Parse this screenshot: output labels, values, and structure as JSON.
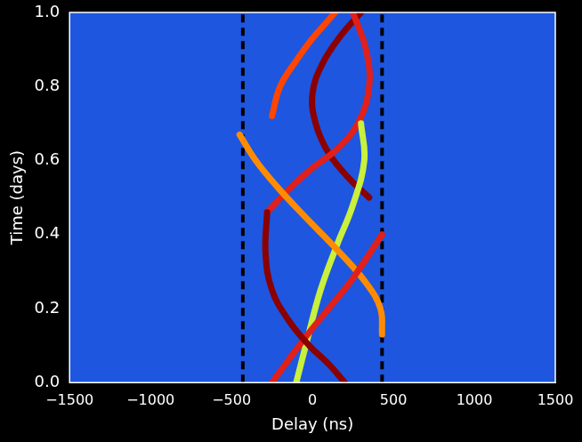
{
  "chart_data": {
    "type": "scatter",
    "x_label": "Delay (ns)",
    "y_label": "Time (days)",
    "xlim": [
      -1500,
      1500
    ],
    "xticks": [
      {
        "value": -1500,
        "label": "−1500"
      },
      {
        "value": -1000,
        "label": "−1000"
      },
      {
        "value": -500,
        "label": "−500"
      },
      0,
      500,
      1000,
      1500
    ],
    "ylim": [
      0,
      1.0
    ],
    "yticks": [
      {
        "value": 0,
        "label": "0.0"
      },
      {
        "value": 0.2,
        "label": "0.2"
      },
      {
        "value": 0.4,
        "label": "0.4"
      },
      {
        "value": 0.6,
        "label": "0.6"
      },
      {
        "value": 0.8,
        "label": "0.8"
      },
      {
        "value": 1.0,
        "label": "1.0"
      }
    ],
    "grid": false,
    "vlines": [
      -430,
      430
    ],
    "vline_style": "dashed",
    "series": [
      {
        "color": "#8b0000",
        "line_style": "solid",
        "x": [
          200,
          100,
          -20,
          -150,
          -250,
          -290,
          -280
        ],
        "y": [
          0,
          0.05,
          0.1,
          0.17,
          0.25,
          0.35,
          0.46
        ]
      },
      {
        "color": "#e0201a",
        "line_style": "solid",
        "x": [
          -250,
          -150,
          -30,
          100,
          230,
          340,
          430
        ],
        "y": [
          0,
          0.06,
          0.13,
          0.2,
          0.27,
          0.34,
          0.4
        ]
      },
      {
        "color": "#ff8c00",
        "line_style": "solid",
        "x": [
          430,
          420,
          330,
          150,
          -50,
          -220,
          -350,
          -450
        ],
        "y": [
          0.13,
          0.2,
          0.27,
          0.36,
          0.45,
          0.53,
          0.6,
          0.67
        ]
      },
      {
        "color": "#c8f03c",
        "line_style": "solid",
        "x": [
          -100,
          -30,
          50,
          150,
          250,
          320,
          300
        ],
        "y": [
          0,
          0.12,
          0.25,
          0.37,
          0.48,
          0.6,
          0.7
        ]
      },
      {
        "color": "#e0201a",
        "line_style": "solid",
        "x": [
          -280,
          -150,
          0,
          150,
          280,
          350,
          330,
          250
        ],
        "y": [
          0.46,
          0.52,
          0.58,
          0.63,
          0.7,
          0.8,
          0.9,
          1.0
        ]
      },
      {
        "color": "#8b0000",
        "line_style": "solid",
        "x": [
          350,
          230,
          100,
          20,
          0,
          60,
          180,
          300
        ],
        "y": [
          0.5,
          0.55,
          0.62,
          0.7,
          0.78,
          0.86,
          0.94,
          1.0
        ]
      },
      {
        "color": "#ff4500",
        "line_style": "solid",
        "x": [
          -250,
          -200,
          -100,
          0,
          80,
          140
        ],
        "y": [
          0.72,
          0.8,
          0.87,
          0.93,
          0.97,
          1.0
        ]
      }
    ]
  }
}
